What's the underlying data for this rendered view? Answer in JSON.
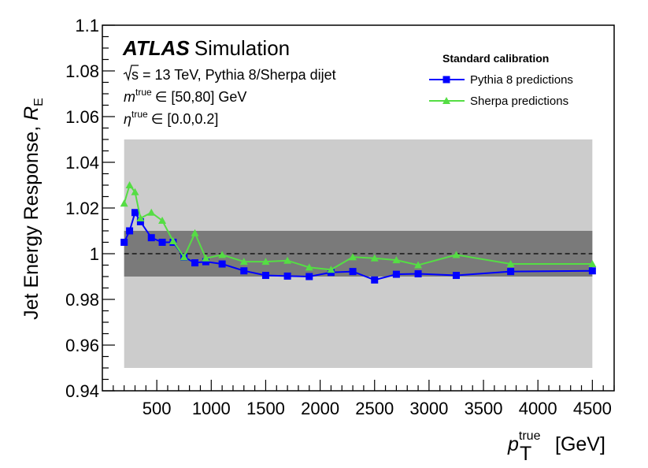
{
  "chart_data": {
    "type": "line",
    "xlim": [
      0,
      4700
    ],
    "ylim": [
      0.94,
      1.1
    ],
    "xticks": [
      500,
      1000,
      1500,
      2000,
      2500,
      3000,
      3500,
      4000,
      4500
    ],
    "xtick_labels": [
      "500",
      "1000",
      "1500",
      "2000",
      "2500",
      "3000",
      "3500",
      "4000",
      "4500"
    ],
    "yticks": [
      0.94,
      0.96,
      0.98,
      1.0,
      1.02,
      1.04,
      1.06,
      1.08,
      1.1
    ],
    "ytick_labels": [
      "0.94",
      "0.96",
      "0.98",
      "1",
      "1.02",
      "1.04",
      "1.06",
      "1.08",
      "1.1"
    ],
    "xlabel": {
      "main": "p",
      "sub": "T",
      "sup": "true",
      "unit": " [GeV]"
    },
    "ylabel": {
      "main": "Jet Energy Response, ",
      "var": "R",
      "sub": "E"
    },
    "grid": false,
    "legend_position": "top-right",
    "bands": [
      {
        "name": "outer",
        "x": [
          200,
          4500
        ],
        "y": [
          0.95,
          1.05
        ],
        "color": "#cccccc"
      },
      {
        "name": "inner",
        "x": [
          200,
          4500
        ],
        "y": [
          0.99,
          1.01
        ],
        "color": "#7a7a7a"
      }
    ],
    "reference_line": {
      "y": 1.0,
      "style": "dashed",
      "color": "#000000"
    },
    "annotations": {
      "atlas": "ATLAS",
      "atlas_suffix": "Simulation",
      "sqrt_s": "s",
      "energy_line": "= 13 TeV, Pythia 8/Sherpa dijet",
      "mass_var": "m",
      "mass_sup": "true",
      "mass_range": "∈ [50,80] GeV",
      "eta_var": "η",
      "eta_sup": "true",
      "eta_range": "∈ [0.0,0.2]"
    },
    "legend_title": "Standard calibration",
    "series": [
      {
        "name": "Pythia 8 predictions",
        "color": "#0000ff",
        "marker": "square",
        "x": [
          200,
          250,
          300,
          350,
          450,
          550,
          650,
          750,
          850,
          950,
          1100,
          1300,
          1500,
          1700,
          1900,
          2100,
          2300,
          2500,
          2700,
          2900,
          3250,
          3750,
          4500
        ],
        "y": [
          1.005,
          1.01,
          1.018,
          1.014,
          1.007,
          1.005,
          1.005,
          0.9985,
          0.996,
          0.9965,
          0.9955,
          0.9925,
          0.9905,
          0.9902,
          0.99,
          0.9918,
          0.9922,
          0.9885,
          0.991,
          0.9912,
          0.9905,
          0.9922,
          0.9925
        ]
      },
      {
        "name": "Sherpa predictions",
        "color": "#55dd44",
        "marker": "triangle",
        "x": [
          200,
          250,
          300,
          350,
          450,
          550,
          650,
          750,
          850,
          950,
          1100,
          1300,
          1500,
          1700,
          1900,
          2100,
          2300,
          2500,
          2700,
          2900,
          3250,
          3750,
          4500
        ],
        "y": [
          1.022,
          1.03,
          1.027,
          1.0155,
          1.018,
          1.0145,
          1.0055,
          0.9985,
          1.009,
          0.998,
          0.9995,
          0.9965,
          0.9965,
          0.997,
          0.994,
          0.993,
          0.9985,
          0.998,
          0.9972,
          0.995,
          0.9995,
          0.9955,
          0.9955
        ]
      }
    ]
  }
}
